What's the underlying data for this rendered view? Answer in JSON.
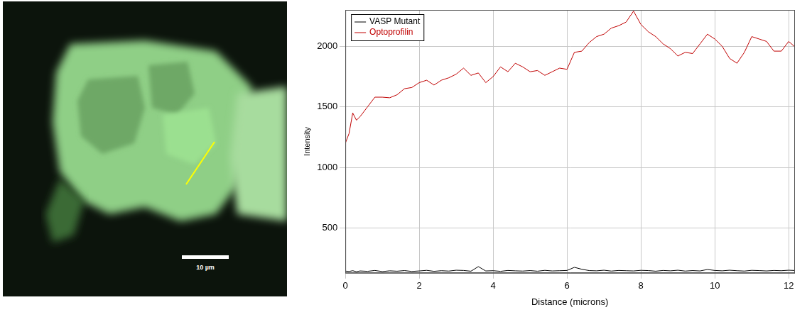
{
  "micrograph": {
    "scale_bar": "10 µm"
  },
  "chart_data": {
    "type": "line",
    "x_label": "Distance (microns)",
    "y_label": "Intensity",
    "x": [
      0,
      0.1,
      0.2,
      0.3,
      0.4,
      0.6,
      0.8,
      1.0,
      1.2,
      1.4,
      1.6,
      1.8,
      2.0,
      2.2,
      2.4,
      2.6,
      2.8,
      3.0,
      3.2,
      3.4,
      3.6,
      3.8,
      4.0,
      4.2,
      4.4,
      4.6,
      4.8,
      5.0,
      5.2,
      5.4,
      5.6,
      5.8,
      6.0,
      6.2,
      6.4,
      6.6,
      6.8,
      7.0,
      7.2,
      7.4,
      7.6,
      7.8,
      8.0,
      8.2,
      8.4,
      8.6,
      8.8,
      9.0,
      9.2,
      9.4,
      9.6,
      9.8,
      10.0,
      10.2,
      10.4,
      10.6,
      10.8,
      11.0,
      11.2,
      11.4,
      11.6,
      11.8,
      12.0,
      12.15
    ],
    "series": [
      {
        "name": "VASP Mutant",
        "color": "#000000",
        "values": [
          145,
          142,
          148,
          140,
          146,
          143,
          150,
          141,
          147,
          144,
          149,
          142,
          146,
          151,
          143,
          148,
          145,
          152,
          150,
          144,
          182,
          146,
          148,
          143,
          150,
          147,
          145,
          149,
          144,
          151,
          146,
          148,
          150,
          176,
          160,
          149,
          147,
          152,
          145,
          150,
          148,
          146,
          151,
          149,
          144,
          150,
          147,
          152,
          145,
          149,
          146,
          158,
          150,
          147,
          152,
          148,
          145,
          151,
          149,
          146,
          150,
          148,
          152,
          150
        ]
      },
      {
        "name": "Optoprofilin",
        "color": "#c00000",
        "values": [
          1200,
          1280,
          1450,
          1390,
          1420,
          1500,
          1580,
          1580,
          1575,
          1600,
          1650,
          1660,
          1700,
          1720,
          1680,
          1720,
          1740,
          1770,
          1820,
          1760,
          1780,
          1700,
          1750,
          1830,
          1790,
          1860,
          1830,
          1790,
          1800,
          1760,
          1790,
          1820,
          1810,
          1950,
          1960,
          2030,
          2080,
          2100,
          2150,
          2170,
          2200,
          2290,
          2180,
          2120,
          2080,
          2020,
          1980,
          1920,
          1950,
          1940,
          2020,
          2100,
          2060,
          2000,
          1900,
          1860,
          1950,
          2080,
          2060,
          2040,
          1960,
          1960,
          2040,
          2000
        ]
      }
    ],
    "xlim": [
      0,
      12.15
    ],
    "xticks": [
      0,
      2,
      4,
      6,
      8,
      10,
      12
    ],
    "ylim": [
      130,
      2300
    ],
    "yticks": [
      500,
      1000,
      1500,
      2000
    ],
    "grid": true,
    "legend": "upper left"
  }
}
